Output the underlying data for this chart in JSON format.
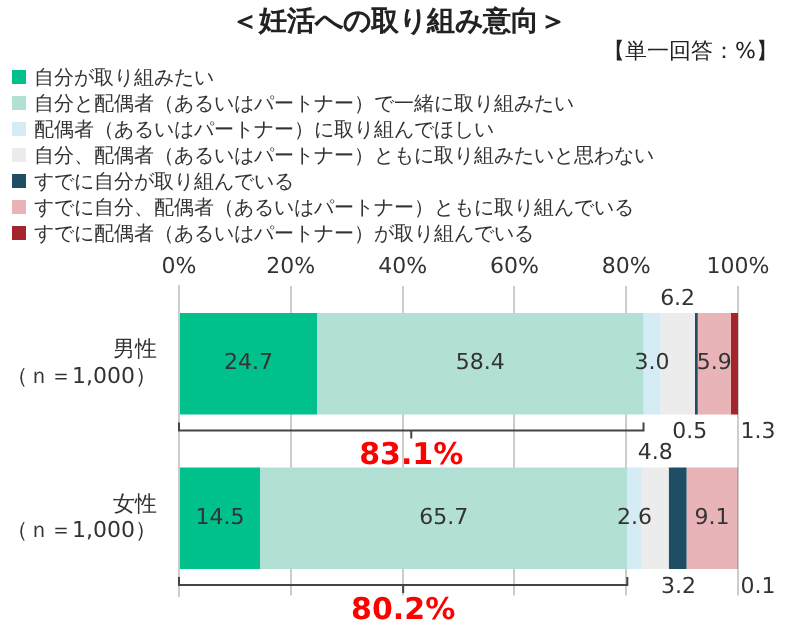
{
  "chart_data": {
    "type": "bar",
    "orientation": "horizontal",
    "stacked": true,
    "title": "＜妊活への取り組み意向＞",
    "subtitle": "【単一回答：%】",
    "categories": [
      "男性（ｎ＝1,000）",
      "女性（ｎ＝1,000）"
    ],
    "series": [
      {
        "name": "自分が取り組みたい",
        "color": "#00c08b",
        "values": [
          24.7,
          14.5
        ],
        "value_labels": [
          "24.7",
          "14.5"
        ]
      },
      {
        "name": "自分と配偶者（あるいはパートナー）で一緒に取り組みたい",
        "color": "#b3e0d4",
        "values": [
          58.4,
          65.7
        ],
        "value_labels": [
          "58.4",
          "65.7"
        ]
      },
      {
        "name": "配偶者（あるいはパートナー）に取り組んでほしい",
        "color": "#d6ecf5",
        "values": [
          3.0,
          2.6
        ],
        "value_labels": [
          "3.0",
          "2.6"
        ]
      },
      {
        "name": "自分、配偶者（あるいはパートナー）ともに取り組みたいと思わない",
        "color": "#ececec",
        "values": [
          6.2,
          4.8
        ],
        "value_labels": [
          "6.2",
          "4.8"
        ]
      },
      {
        "name": "すでに自分が取り組んでいる",
        "color": "#1f4e64",
        "values": [
          0.5,
          3.2
        ],
        "value_labels": [
          "0.5",
          "3.2"
        ]
      },
      {
        "name": "すでに自分、配偶者（あるいはパートナー）ともに取り組んでいる",
        "color": "#e8b4b8",
        "values": [
          5.9,
          9.1
        ],
        "value_labels": [
          "5.9",
          "9.1"
        ]
      },
      {
        "name": "すでに配偶者（あるいはパートナー）が取り組んでいる",
        "color": "#a4262c",
        "values": [
          1.3,
          0.1
        ],
        "value_labels": [
          "1.3",
          "0.1"
        ]
      }
    ],
    "xlim": [
      0,
      100
    ],
    "xticks": [
      {
        "value": 0,
        "label": "0%"
      },
      {
        "value": 20,
        "label": "20%"
      },
      {
        "value": 40,
        "label": "40%"
      },
      {
        "value": 60,
        "label": "60%"
      },
      {
        "value": 80,
        "label": "80%"
      },
      {
        "value": 100,
        "label": "100%"
      }
    ],
    "grid": "x",
    "legend": "top left",
    "annotations": [
      "83.1%",
      "80.2%"
    ]
  }
}
